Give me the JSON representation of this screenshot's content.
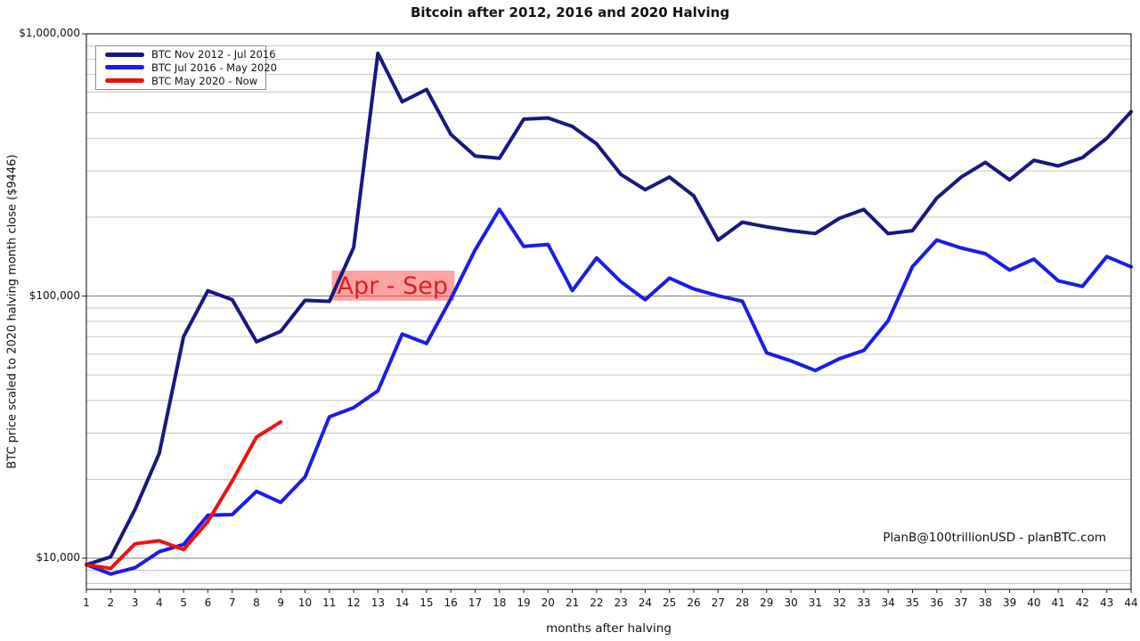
{
  "chart_data": {
    "type": "line",
    "title": "Bitcoin after 2012, 2016 and 2020 Halving",
    "xlabel": "months after halving",
    "ylabel": "BTC price scaled to 2020 halving month close ($9446)",
    "watermark": "PlanB@100trillionUSD  -  planBTC.com",
    "x_scale": "linear",
    "y_scale": "log",
    "xlim": [
      1,
      44
    ],
    "ylim": [
      7600,
      1000000
    ],
    "x_ticks": [
      1,
      2,
      3,
      4,
      5,
      6,
      7,
      8,
      9,
      10,
      11,
      12,
      13,
      14,
      15,
      16,
      17,
      18,
      19,
      20,
      21,
      22,
      23,
      24,
      25,
      26,
      27,
      28,
      29,
      30,
      31,
      32,
      33,
      34,
      35,
      36,
      37,
      38,
      39,
      40,
      41,
      42,
      43,
      44
    ],
    "y_ticks": [
      {
        "value": 10000,
        "label": "$10,000"
      },
      {
        "value": 100000,
        "label": "$100,000"
      },
      {
        "value": 1000000,
        "label": "$1,000,000"
      }
    ],
    "y_minor_gridlines": [
      8000,
      9000,
      20000,
      30000,
      40000,
      50000,
      60000,
      70000,
      80000,
      90000,
      200000,
      300000,
      400000,
      500000,
      600000,
      700000,
      800000,
      900000
    ],
    "grid_color_major": "#7d7d7d",
    "grid_color_minor": "#c6c6c6",
    "legend_position": "upper-left",
    "series": [
      {
        "name": "BTC Nov 2012 - Jul 2016",
        "color": "#181880",
        "x_start": 1,
        "values": [
          9446,
          10115,
          15350,
          25104,
          69965,
          104711,
          96867,
          66900,
          73327,
          96265,
          95438,
          153272,
          842318,
          550515,
          613640,
          413639,
          342062,
          335122,
          472315,
          477670,
          443323,
          380547,
          291006,
          254438,
          284282,
          240808,
          163546,
          191221,
          183610,
          177489,
          173149,
          198027,
          213760,
          173021,
          177534,
          236288,
          283772,
          323428,
          277339,
          329175,
          313411,
          337170,
          399645,
          504362
        ]
      },
      {
        "name": "BTC Jul 2016 - May 2020",
        "color": "#1c1ce8",
        "x_start": 1,
        "values": [
          9446,
          8702,
          9197,
          10585,
          11276,
          14573,
          14674,
          17994,
          16331,
          20414,
          34574,
          37510,
          43479,
          71601,
          65938,
          97551,
          149951,
          214064,
          154557,
          157231,
          104916,
          139731,
          113323,
          96838,
          116974,
          106361,
          100203,
          95531,
          60746,
          56594,
          51975,
          57712,
          62032,
          80458,
          129414,
          163571,
          152509,
          145081,
          125661,
          138221,
          114261,
          108777,
          141392,
          129193
        ]
      },
      {
        "name": "BTC May 2020 - Now",
        "color": "#ee1111",
        "x_start": 1,
        "values": [
          9446,
          9138,
          11351,
          11655,
          10776,
          13797,
          19698,
          28990,
          33114
        ]
      }
    ],
    "annotation": {
      "text": "Apr - Sep",
      "text_color": "#d62222",
      "fill_color": "#ff4646",
      "fill_opacity": 0.5,
      "month_start": 11.1,
      "month_end": 16.15,
      "value_top": 125000,
      "value_bottom": 96000
    }
  }
}
